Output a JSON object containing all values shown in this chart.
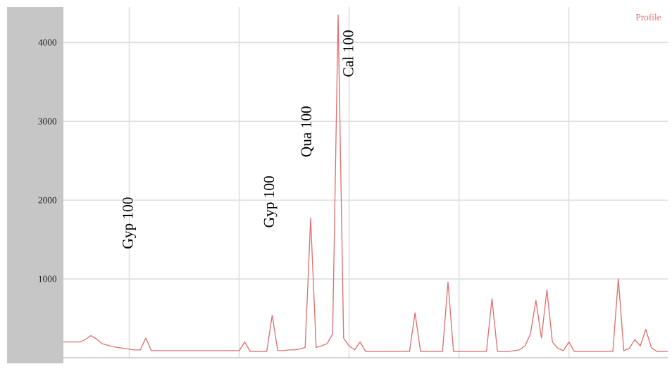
{
  "chart_data": {
    "type": "line",
    "categories": [
      null,
      null,
      null,
      null,
      null,
      null,
      null,
      null,
      null,
      null,
      null,
      null,
      null,
      null,
      null,
      null,
      null,
      null,
      null,
      null,
      null,
      null,
      null,
      null,
      null,
      null,
      null,
      null,
      null,
      null,
      null,
      null,
      null,
      null,
      null,
      null,
      null,
      null,
      null,
      null,
      null,
      null,
      null,
      null,
      null,
      null,
      null,
      null,
      null,
      null,
      null,
      null,
      null,
      null,
      null,
      null,
      null,
      null,
      null,
      null,
      null,
      null,
      null,
      null,
      null,
      null,
      null,
      null,
      null,
      null,
      null,
      null,
      null,
      null,
      null,
      null,
      null,
      null,
      null,
      null,
      null,
      null,
      null,
      null,
      null,
      null,
      null,
      null,
      null,
      null,
      null,
      null,
      null,
      null,
      null,
      null,
      null,
      null,
      null,
      null,
      null,
      null,
      null,
      null,
      null,
      null,
      null,
      null,
      null,
      null,
      null
    ],
    "series": [
      {
        "name": "Profile",
        "color": "#e07070",
        "values": [
          200,
          200,
          200,
          200,
          230,
          280,
          240,
          180,
          160,
          140,
          130,
          120,
          110,
          100,
          100,
          250,
          90,
          90,
          90,
          90,
          90,
          90,
          90,
          90,
          90,
          90,
          90,
          90,
          90,
          90,
          90,
          90,
          90,
          200,
          80,
          80,
          80,
          80,
          540,
          90,
          90,
          100,
          100,
          110,
          130,
          1770,
          130,
          150,
          180,
          300,
          4350,
          250,
          150,
          100,
          200,
          80,
          80,
          80,
          80,
          80,
          80,
          80,
          80,
          80,
          570,
          80,
          80,
          80,
          80,
          80,
          960,
          80,
          80,
          80,
          80,
          80,
          80,
          80,
          750,
          80,
          80,
          80,
          90,
          100,
          150,
          300,
          730,
          250,
          860,
          200,
          120,
          90,
          200,
          80,
          80,
          80,
          80,
          80,
          80,
          80,
          80,
          1000,
          90,
          120,
          230,
          150,
          360,
          130,
          80,
          80,
          80
        ]
      }
    ],
    "ylim": [
      0,
      4450
    ],
    "yticks": [
      1000,
      2000,
      3000,
      4000
    ],
    "grid": true,
    "line_style": "solid",
    "marker": "none",
    "annotations": [
      "Gyp 100",
      "Gyp 100",
      "Qua 100",
      "Cal 100"
    ]
  }
}
